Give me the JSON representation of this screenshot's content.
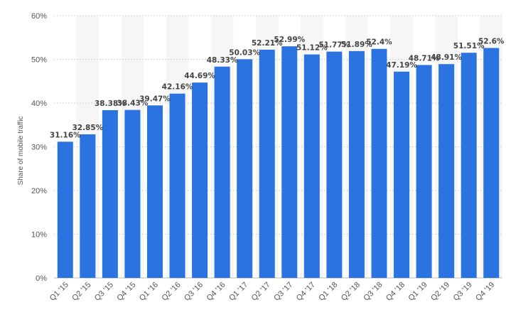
{
  "chart_data": {
    "type": "bar",
    "title": "",
    "xlabel": "",
    "ylabel": "Share of mobile traffic",
    "ylim": [
      0,
      60
    ],
    "yticks": [
      "0%",
      "10%",
      "20%",
      "30%",
      "40%",
      "50%",
      "60%"
    ],
    "grid": true,
    "bar_color": "#2a73e0",
    "stripe_color": "#f6f6f6",
    "grid_color": "#c8c8c8",
    "categories": [
      "Q1 '15",
      "Q2 '15",
      "Q3 '15",
      "Q4 '15",
      "Q1 '16",
      "Q2 '16",
      "Q3 '16",
      "Q4 '16",
      "Q1 '17",
      "Q2 '17",
      "Q3 '17",
      "Q4 '17",
      "Q1 '18",
      "Q2 '18",
      "Q3 '18",
      "Q4 '18",
      "Q1 '19",
      "Q2 '19",
      "Q3 '19",
      "Q4 '19"
    ],
    "values": [
      31.16,
      32.85,
      38.38,
      38.43,
      39.47,
      42.16,
      44.69,
      48.33,
      50.03,
      52.21,
      52.99,
      51.12,
      51.77,
      51.89,
      52.4,
      47.19,
      48.71,
      48.91,
      51.51,
      52.6
    ],
    "labels": [
      "31.16%",
      "32.85%",
      "38.38%",
      "38.43%",
      "39.47%",
      "42.16%",
      "44.69%",
      "48.33%",
      "50.03%",
      "52.21%",
      "52.99%",
      "51.12%",
      "51.77%",
      "51.89%",
      "52.4%",
      "47.19%",
      "48.71%",
      "48.91%",
      "51.51%",
      "52.6%"
    ]
  }
}
